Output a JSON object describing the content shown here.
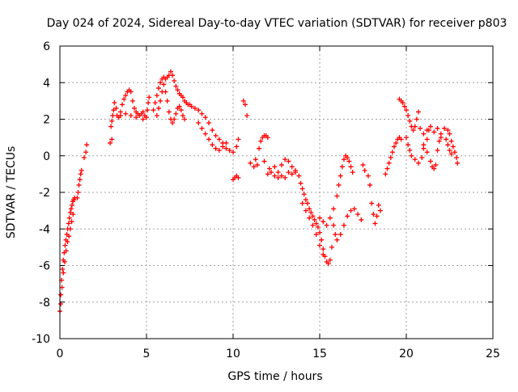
{
  "chart_data": {
    "type": "scatter",
    "title": "Day 024 of 2024, Sidereal Day-to-day VTEC variation (SDTVAR) for receiver p803",
    "xlabel": "GPS time / hours",
    "ylabel": "SDTVAR / TECUs",
    "xlim": [
      0,
      25
    ],
    "ylim": [
      -10,
      6
    ],
    "xticks": [
      0,
      5,
      10,
      15,
      20,
      25
    ],
    "yticks": [
      -10,
      -8,
      -6,
      -4,
      -2,
      0,
      2,
      4,
      6
    ],
    "grid": true,
    "marker": "+",
    "color": "#ff0000",
    "series": [
      {
        "name": "SDTVAR",
        "points": [
          [
            0.0,
            -8.5
          ],
          [
            0.05,
            -7.6
          ],
          [
            0.1,
            -6.8
          ],
          [
            0.15,
            -6.2
          ],
          [
            0.2,
            -5.7
          ],
          [
            0.25,
            -5.3
          ],
          [
            0.3,
            -4.9
          ],
          [
            0.35,
            -4.6
          ],
          [
            0.4,
            -4.3
          ],
          [
            0.45,
            -4.0
          ],
          [
            0.5,
            -3.7
          ],
          [
            0.55,
            -3.4
          ],
          [
            0.6,
            -3.1
          ],
          [
            0.65,
            -2.9
          ],
          [
            0.7,
            -2.7
          ],
          [
            0.75,
            -2.5
          ],
          [
            0.8,
            -2.4
          ],
          [
            0.85,
            -2.3
          ],
          [
            0.05,
            -8.1
          ],
          [
            0.12,
            -7.2
          ],
          [
            0.2,
            -6.4
          ],
          [
            0.28,
            -5.8
          ],
          [
            0.36,
            -5.2
          ],
          [
            0.44,
            -4.7
          ],
          [
            0.52,
            -4.4
          ],
          [
            0.6,
            -4.0
          ],
          [
            0.68,
            -3.6
          ],
          [
            0.76,
            -3.2
          ],
          [
            1.0,
            -2.3
          ],
          [
            1.05,
            -2.0
          ],
          [
            1.1,
            -1.6
          ],
          [
            1.15,
            -1.3
          ],
          [
            1.2,
            -1.0
          ],
          [
            1.25,
            -0.8
          ],
          [
            1.4,
            -0.1
          ],
          [
            1.5,
            0.2
          ],
          [
            1.55,
            0.6
          ],
          [
            2.9,
            0.7
          ],
          [
            3.0,
            0.9
          ],
          [
            2.95,
            1.6
          ],
          [
            3.0,
            1.9
          ],
          [
            3.05,
            2.2
          ],
          [
            3.1,
            2.5
          ],
          [
            3.15,
            2.9
          ],
          [
            3.25,
            2.6
          ],
          [
            3.3,
            2.2
          ],
          [
            3.4,
            2.1
          ],
          [
            3.5,
            2.4
          ],
          [
            3.6,
            2.8
          ],
          [
            3.7,
            3.1
          ],
          [
            3.8,
            3.3
          ],
          [
            3.9,
            3.5
          ],
          [
            4.0,
            3.6
          ],
          [
            4.1,
            3.5
          ],
          [
            4.2,
            3.0
          ],
          [
            4.3,
            2.6
          ],
          [
            4.4,
            2.4
          ],
          [
            4.5,
            2.3
          ],
          [
            4.6,
            2.2
          ],
          [
            4.7,
            2.3
          ],
          [
            4.8,
            2.4
          ],
          [
            4.9,
            2.2
          ],
          [
            5.0,
            2.1
          ],
          [
            5.05,
            2.5
          ],
          [
            5.1,
            2.9
          ],
          [
            5.15,
            3.2
          ],
          [
            3.5,
            2.2
          ],
          [
            3.8,
            2.3
          ],
          [
            4.1,
            2.2
          ],
          [
            4.4,
            2.1
          ],
          [
            4.8,
            2.0
          ],
          [
            5.4,
            2.5
          ],
          [
            5.5,
            2.9
          ],
          [
            5.6,
            3.3
          ],
          [
            5.7,
            3.7
          ],
          [
            5.8,
            4.0
          ],
          [
            5.9,
            4.2
          ],
          [
            6.0,
            4.3
          ],
          [
            6.1,
            4.2
          ],
          [
            6.2,
            4.3
          ],
          [
            6.3,
            4.4
          ],
          [
            6.4,
            4.6
          ],
          [
            6.5,
            4.4
          ],
          [
            6.6,
            4.1
          ],
          [
            6.7,
            3.8
          ],
          [
            6.8,
            3.6
          ],
          [
            6.9,
            3.4
          ],
          [
            7.0,
            3.3
          ],
          [
            7.1,
            3.2
          ],
          [
            7.2,
            3.0
          ],
          [
            7.3,
            2.9
          ],
          [
            7.4,
            2.8
          ],
          [
            7.5,
            2.8
          ],
          [
            5.6,
            2.2
          ],
          [
            5.7,
            2.6
          ],
          [
            5.8,
            3.0
          ],
          [
            5.9,
            3.5
          ],
          [
            6.0,
            3.9
          ],
          [
            6.1,
            3.5
          ],
          [
            6.2,
            3.0
          ],
          [
            6.3,
            2.4
          ],
          [
            6.4,
            2.0
          ],
          [
            6.5,
            1.8
          ],
          [
            6.6,
            2.0
          ],
          [
            6.7,
            2.3
          ],
          [
            6.8,
            2.6
          ],
          [
            6.9,
            2.7
          ],
          [
            7.0,
            2.5
          ],
          [
            7.1,
            2.2
          ],
          [
            7.2,
            2.0
          ],
          [
            7.6,
            2.7
          ],
          [
            7.8,
            2.6
          ],
          [
            8.0,
            2.5
          ],
          [
            8.2,
            2.3
          ],
          [
            8.4,
            2.1
          ],
          [
            8.6,
            1.8
          ],
          [
            8.8,
            1.4
          ],
          [
            9.0,
            1.1
          ],
          [
            9.2,
            0.9
          ],
          [
            9.4,
            0.7
          ],
          [
            9.6,
            0.4
          ],
          [
            9.8,
            0.3
          ],
          [
            10.0,
            0.2
          ],
          [
            10.2,
            0.5
          ],
          [
            10.3,
            0.9
          ],
          [
            8.0,
            1.8
          ],
          [
            8.2,
            1.5
          ],
          [
            8.4,
            1.2
          ],
          [
            8.6,
            0.9
          ],
          [
            8.8,
            0.6
          ],
          [
            9.0,
            0.4
          ],
          [
            9.2,
            0.3
          ],
          [
            9.4,
            0.5
          ],
          [
            9.6,
            0.7
          ],
          [
            10.0,
            -1.3
          ],
          [
            10.1,
            -1.2
          ],
          [
            10.2,
            -1.1
          ],
          [
            10.3,
            -1.2
          ],
          [
            10.6,
            3.0
          ],
          [
            10.7,
            2.8
          ],
          [
            10.8,
            2.2
          ],
          [
            11.0,
            -0.4
          ],
          [
            11.2,
            -0.6
          ],
          [
            11.3,
            -0.2
          ],
          [
            11.5,
            0.4
          ],
          [
            11.6,
            0.8
          ],
          [
            11.7,
            1.0
          ],
          [
            11.8,
            1.1
          ],
          [
            11.9,
            1.1
          ],
          [
            12.0,
            1.0
          ],
          [
            11.4,
            -0.5
          ],
          [
            11.8,
            -0.3
          ],
          [
            12.1,
            -0.7
          ],
          [
            12.4,
            -0.6
          ],
          [
            12.6,
            -0.9
          ],
          [
            12.8,
            -0.5
          ],
          [
            13.0,
            -0.2
          ],
          [
            13.2,
            -0.3
          ],
          [
            13.4,
            -0.6
          ],
          [
            13.6,
            -0.8
          ],
          [
            12.0,
            -1.0
          ],
          [
            12.2,
            -0.9
          ],
          [
            12.4,
            -1.1
          ],
          [
            12.6,
            -1.2
          ],
          [
            12.8,
            -1.1
          ],
          [
            13.0,
            -1.2
          ],
          [
            13.2,
            -0.9
          ],
          [
            13.4,
            -1.0
          ],
          [
            13.6,
            -0.9
          ],
          [
            13.8,
            -1.1
          ],
          [
            13.9,
            -1.5
          ],
          [
            14.0,
            -1.8
          ],
          [
            14.1,
            -2.1
          ],
          [
            14.2,
            -2.4
          ],
          [
            14.3,
            -2.6
          ],
          [
            14.4,
            -2.9
          ],
          [
            14.5,
            -3.1
          ],
          [
            14.6,
            -3.3
          ],
          [
            14.7,
            -3.5
          ],
          [
            14.8,
            -3.7
          ],
          [
            14.9,
            -3.9
          ],
          [
            15.0,
            -4.2
          ],
          [
            15.1,
            -4.6
          ],
          [
            15.2,
            -5.1
          ],
          [
            15.3,
            -5.5
          ],
          [
            15.4,
            -5.8
          ],
          [
            15.5,
            -5.9
          ],
          [
            15.6,
            -5.7
          ],
          [
            15.7,
            -5.0
          ],
          [
            14.0,
            -2.6
          ],
          [
            14.2,
            -3.0
          ],
          [
            14.4,
            -3.4
          ],
          [
            14.6,
            -3.8
          ],
          [
            14.8,
            -4.3
          ],
          [
            15.0,
            -4.9
          ],
          [
            15.2,
            -5.4
          ],
          [
            15.0,
            -3.4
          ],
          [
            15.2,
            -3.6
          ],
          [
            15.4,
            -3.8
          ],
          [
            15.6,
            -3.4
          ],
          [
            15.8,
            -2.9
          ],
          [
            16.0,
            -2.2
          ],
          [
            16.1,
            -1.6
          ],
          [
            16.2,
            -1.1
          ],
          [
            16.3,
            -0.6
          ],
          [
            16.4,
            -0.2
          ],
          [
            16.5,
            0.0
          ],
          [
            16.6,
            -0.1
          ],
          [
            16.7,
            -0.3
          ],
          [
            16.8,
            -0.6
          ],
          [
            16.9,
            -0.9
          ],
          [
            15.8,
            -3.8
          ],
          [
            15.9,
            -4.3
          ],
          [
            16.0,
            -4.6
          ],
          [
            16.2,
            -4.3
          ],
          [
            16.4,
            -3.8
          ],
          [
            16.6,
            -3.3
          ],
          [
            16.8,
            -3.0
          ],
          [
            17.0,
            -2.9
          ],
          [
            17.2,
            -3.2
          ],
          [
            17.4,
            -3.5
          ],
          [
            17.5,
            -0.5
          ],
          [
            17.6,
            -0.8
          ],
          [
            17.8,
            -1.1
          ],
          [
            17.9,
            -1.6
          ],
          [
            18.0,
            -2.6
          ],
          [
            18.1,
            -3.2
          ],
          [
            18.2,
            -3.7
          ],
          [
            18.3,
            -3.3
          ],
          [
            18.4,
            -2.7
          ],
          [
            18.5,
            -3.0
          ],
          [
            18.8,
            -1.0
          ],
          [
            18.9,
            -0.7
          ],
          [
            19.0,
            -0.4
          ],
          [
            19.1,
            -0.1
          ],
          [
            19.2,
            0.2
          ],
          [
            19.3,
            0.5
          ],
          [
            19.4,
            0.7
          ],
          [
            19.5,
            0.9
          ],
          [
            19.6,
            1.0
          ],
          [
            19.7,
            0.9
          ],
          [
            19.6,
            3.1
          ],
          [
            19.7,
            3.0
          ],
          [
            19.8,
            2.9
          ],
          [
            19.9,
            2.7
          ],
          [
            20.0,
            2.5
          ],
          [
            20.1,
            2.2
          ],
          [
            20.2,
            1.9
          ],
          [
            20.3,
            1.6
          ],
          [
            20.4,
            1.4
          ],
          [
            20.5,
            1.6
          ],
          [
            20.6,
            2.0
          ],
          [
            20.7,
            2.4
          ],
          [
            20.0,
            1.0
          ],
          [
            20.1,
            0.6
          ],
          [
            20.2,
            0.3
          ],
          [
            20.3,
            0.0
          ],
          [
            20.5,
            -0.2
          ],
          [
            20.7,
            -0.4
          ],
          [
            20.9,
            -0.1
          ],
          [
            21.0,
            0.4
          ],
          [
            21.2,
            0.9
          ],
          [
            21.3,
            1.4
          ],
          [
            21.4,
            1.6
          ],
          [
            21.0,
            0.6
          ],
          [
            21.2,
            0.2
          ],
          [
            21.4,
            -0.3
          ],
          [
            21.5,
            -0.6
          ],
          [
            21.6,
            -0.7
          ],
          [
            21.7,
            -0.5
          ],
          [
            21.8,
            0.3
          ],
          [
            21.9,
            0.8
          ],
          [
            22.0,
            1.0
          ],
          [
            20.8,
            1.5
          ],
          [
            21.0,
            1.2
          ],
          [
            21.2,
            1.4
          ],
          [
            21.6,
            1.3
          ],
          [
            21.8,
            1.5
          ],
          [
            22.0,
            1.2
          ],
          [
            22.2,
            1.5
          ],
          [
            22.4,
            1.4
          ],
          [
            22.5,
            1.2
          ],
          [
            22.6,
            0.8
          ],
          [
            22.7,
            0.5
          ],
          [
            22.8,
            0.2
          ],
          [
            22.9,
            -0.1
          ],
          [
            22.95,
            -0.4
          ],
          [
            22.3,
            0.9
          ],
          [
            22.4,
            0.6
          ],
          [
            22.5,
            0.3
          ],
          [
            22.6,
            0.1
          ]
        ]
      }
    ]
  }
}
